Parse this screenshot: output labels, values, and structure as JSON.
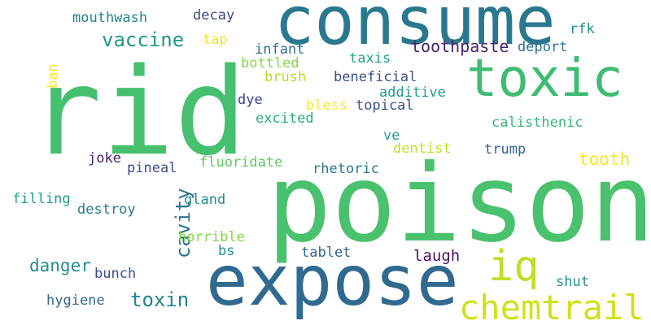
{
  "words": [
    {
      "text": "consume",
      "color": "#2a788e"
    },
    {
      "text": "rid",
      "color": "#46c06f"
    },
    {
      "text": "toxic",
      "color": "#3fbc73"
    },
    {
      "text": "poison",
      "color": "#4ac16d"
    },
    {
      "text": "expose",
      "color": "#306a8e"
    },
    {
      "text": "iq",
      "color": "#bddf26"
    },
    {
      "text": "chemtrail",
      "color": "#d0e11c"
    },
    {
      "text": "vaccine",
      "color": "#1f9a8a"
    },
    {
      "text": "toothpaste",
      "color": "#482475"
    },
    {
      "text": "mouthwash",
      "color": "#26828e"
    },
    {
      "text": "decay",
      "color": "#3e4a89"
    },
    {
      "text": "tap",
      "color": "#f1e51d"
    },
    {
      "text": "rfk",
      "color": "#20928c"
    },
    {
      "text": "deport",
      "color": "#2c728e"
    },
    {
      "text": "infant",
      "color": "#2d708e"
    },
    {
      "text": "bottled",
      "color": "#86d549"
    },
    {
      "text": "taxis",
      "color": "#22a884"
    },
    {
      "text": "ban",
      "color": "#fde725"
    },
    {
      "text": "brush",
      "color": "#b5de2b"
    },
    {
      "text": "beneficial",
      "color": "#3b528b"
    },
    {
      "text": "additive",
      "color": "#1f9e89"
    },
    {
      "text": "dye",
      "color": "#414487"
    },
    {
      "text": "bless",
      "color": "#fde725"
    },
    {
      "text": "topical",
      "color": "#3b528b"
    },
    {
      "text": "excited",
      "color": "#25ab82"
    },
    {
      "text": "calisthenic",
      "color": "#35b779"
    },
    {
      "text": "ve",
      "color": "#1f9e89"
    },
    {
      "text": "dentist",
      "color": "#c2df23"
    },
    {
      "text": "trump",
      "color": "#33638d"
    },
    {
      "text": "tooth",
      "color": "#f4e61e"
    },
    {
      "text": "joke",
      "color": "#481f70"
    },
    {
      "text": "pineal",
      "color": "#3e4c8a"
    },
    {
      "text": "fluoridate",
      "color": "#5ec962"
    },
    {
      "text": "rhetoric",
      "color": "#2a788e"
    },
    {
      "text": "cavity",
      "color": "#2c718e"
    },
    {
      "text": "gland",
      "color": "#23898e"
    },
    {
      "text": "filling",
      "color": "#1fa187"
    },
    {
      "text": "destroy",
      "color": "#2a788e"
    },
    {
      "text": "horrible",
      "color": "#84d44b"
    },
    {
      "text": "bs",
      "color": "#20928c"
    },
    {
      "text": "danger",
      "color": "#218e8d"
    },
    {
      "text": "tablet",
      "color": "#32648e"
    },
    {
      "text": "laugh",
      "color": "#471365"
    },
    {
      "text": "bunch",
      "color": "#3d4e8a"
    },
    {
      "text": "shut",
      "color": "#21918c"
    },
    {
      "text": "toxin",
      "color": "#25838e"
    },
    {
      "text": "hygiene",
      "color": "#31688e"
    }
  ]
}
